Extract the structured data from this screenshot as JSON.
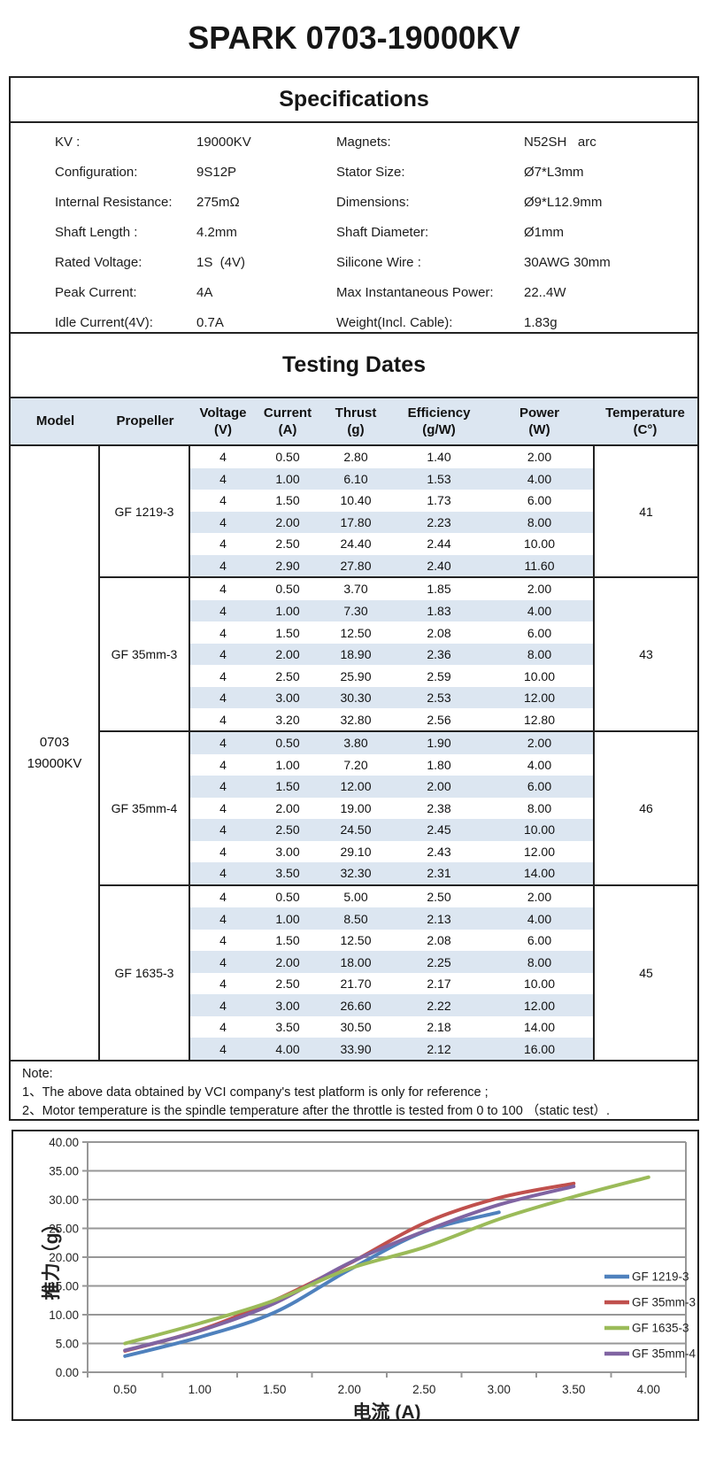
{
  "page": {
    "title": "SPARK 0703-19000KV"
  },
  "specifications": {
    "title": "Specifications",
    "rows": [
      {
        "label1": "KV :",
        "value1": "19000KV",
        "label2": "Magnets:",
        "value2": "N52SH   arc"
      },
      {
        "label1": "Configuration:",
        "value1": "9S12P",
        "label2": "Stator Size:",
        "value2": "Ø7*L3mm"
      },
      {
        "label1": "Internal Resistance:",
        "value1": "275mΩ",
        "label2": "Dimensions:",
        "value2": "Ø9*L12.9mm"
      },
      {
        "label1": "Shaft Length :",
        "value1": "4.2mm",
        "label2": "Shaft Diameter:",
        "value2": "Ø1mm"
      },
      {
        "label1": "Rated Voltage:",
        "value1": "1S  (4V)",
        "label2": "Silicone Wire :",
        "value2": "30AWG 30mm"
      },
      {
        "label1": "Peak Current:",
        "value1": "4A",
        "label2": "Max Instantaneous Power:",
        "value2": "22..4W"
      },
      {
        "label1": "Idle Current(4V):",
        "value1": "0.7A",
        "label2": "Weight(Incl. Cable):",
        "value2": "1.83g"
      }
    ]
  },
  "testing": {
    "title": "Testing Dates",
    "columns": [
      {
        "name": "Model",
        "unit": ""
      },
      {
        "name": "Propeller",
        "unit": ""
      },
      {
        "name": "Voltage",
        "unit": "(V)"
      },
      {
        "name": "Current",
        "unit": "(A)"
      },
      {
        "name": "Thrust",
        "unit": "(g)"
      },
      {
        "name": "Efficiency",
        "unit": "(g/W)"
      },
      {
        "name": "Power",
        "unit": "(W)"
      },
      {
        "name": "Temperature",
        "unit": "(C°)"
      }
    ],
    "model_lines": [
      "0703",
      "19000KV"
    ],
    "stripe_color": "#dce6f1",
    "groups": [
      {
        "propeller": "GF 1219-3",
        "temperature": "41",
        "rows": [
          [
            "4",
            "0.50",
            "2.80",
            "1.40",
            "2.00"
          ],
          [
            "4",
            "1.00",
            "6.10",
            "1.53",
            "4.00"
          ],
          [
            "4",
            "1.50",
            "10.40",
            "1.73",
            "6.00"
          ],
          [
            "4",
            "2.00",
            "17.80",
            "2.23",
            "8.00"
          ],
          [
            "4",
            "2.50",
            "24.40",
            "2.44",
            "10.00"
          ],
          [
            "4",
            "2.90",
            "27.80",
            "2.40",
            "11.60"
          ]
        ]
      },
      {
        "propeller": "GF 35mm-3",
        "temperature": "43",
        "rows": [
          [
            "4",
            "0.50",
            "3.70",
            "1.85",
            "2.00"
          ],
          [
            "4",
            "1.00",
            "7.30",
            "1.83",
            "4.00"
          ],
          [
            "4",
            "1.50",
            "12.50",
            "2.08",
            "6.00"
          ],
          [
            "4",
            "2.00",
            "18.90",
            "2.36",
            "8.00"
          ],
          [
            "4",
            "2.50",
            "25.90",
            "2.59",
            "10.00"
          ],
          [
            "4",
            "3.00",
            "30.30",
            "2.53",
            "12.00"
          ],
          [
            "4",
            "3.20",
            "32.80",
            "2.56",
            "12.80"
          ]
        ]
      },
      {
        "propeller": "GF 35mm-4",
        "temperature": "46",
        "rows": [
          [
            "4",
            "0.50",
            "3.80",
            "1.90",
            "2.00"
          ],
          [
            "4",
            "1.00",
            "7.20",
            "1.80",
            "4.00"
          ],
          [
            "4",
            "1.50",
            "12.00",
            "2.00",
            "6.00"
          ],
          [
            "4",
            "2.00",
            "19.00",
            "2.38",
            "8.00"
          ],
          [
            "4",
            "2.50",
            "24.50",
            "2.45",
            "10.00"
          ],
          [
            "4",
            "3.00",
            "29.10",
            "2.43",
            "12.00"
          ],
          [
            "4",
            "3.50",
            "32.30",
            "2.31",
            "14.00"
          ]
        ]
      },
      {
        "propeller": "GF 1635-3",
        "temperature": "45",
        "rows": [
          [
            "4",
            "0.50",
            "5.00",
            "2.50",
            "2.00"
          ],
          [
            "4",
            "1.00",
            "8.50",
            "2.13",
            "4.00"
          ],
          [
            "4",
            "1.50",
            "12.50",
            "2.08",
            "6.00"
          ],
          [
            "4",
            "2.00",
            "18.00",
            "2.25",
            "8.00"
          ],
          [
            "4",
            "2.50",
            "21.70",
            "2.17",
            "10.00"
          ],
          [
            "4",
            "3.00",
            "26.60",
            "2.22",
            "12.00"
          ],
          [
            "4",
            "3.50",
            "30.50",
            "2.18",
            "14.00"
          ],
          [
            "4",
            "4.00",
            "33.90",
            "2.12",
            "16.00"
          ]
        ]
      }
    ]
  },
  "note": {
    "title": "Note:",
    "lines": [
      "1、The above data obtained by VCI company's test platform is only for reference ;",
      "2、Motor temperature is the spindle temperature after the throttle is tested from 0 to 100 （static test）."
    ]
  },
  "chart_data": {
    "type": "line",
    "x_type": "category",
    "categories": [
      "0.50",
      "1.00",
      "1.50",
      "2.00",
      "2.50",
      "3.00",
      "3.50",
      "4.00"
    ],
    "series": [
      {
        "name": "GF 1219-3",
        "color": "#4f81bd",
        "values": [
          2.8,
          6.1,
          10.4,
          17.8,
          24.4,
          27.8
        ]
      },
      {
        "name": "GF 35mm-3",
        "color": "#c0504d",
        "values": [
          3.7,
          7.3,
          12.5,
          18.9,
          25.9,
          30.3,
          32.8
        ]
      },
      {
        "name": "GF 1635-3",
        "color": "#9bbb59",
        "values": [
          5.0,
          8.5,
          12.5,
          18.0,
          21.7,
          26.6,
          30.5,
          33.9
        ]
      },
      {
        "name": "GF 35mm-4",
        "color": "#8064a2",
        "values": [
          3.8,
          7.2,
          12.0,
          19.0,
          24.5,
          29.1,
          32.3
        ]
      }
    ],
    "legend_order": [
      "GF 1219-3",
      "GF 35mm-3",
      "GF 1635-3",
      "GF 35mm-4"
    ],
    "legend_position": "right-inside",
    "xlabel": "电流 (A)",
    "ylabel": "推力（g）",
    "ylim": [
      0,
      40
    ],
    "y_step": 5,
    "y_tick_labels": [
      "0.00",
      "5.00",
      "10.00",
      "15.00",
      "20.00",
      "25.00",
      "30.00",
      "35.00",
      "40.00"
    ],
    "grid": true,
    "grid_color": "#979797"
  }
}
